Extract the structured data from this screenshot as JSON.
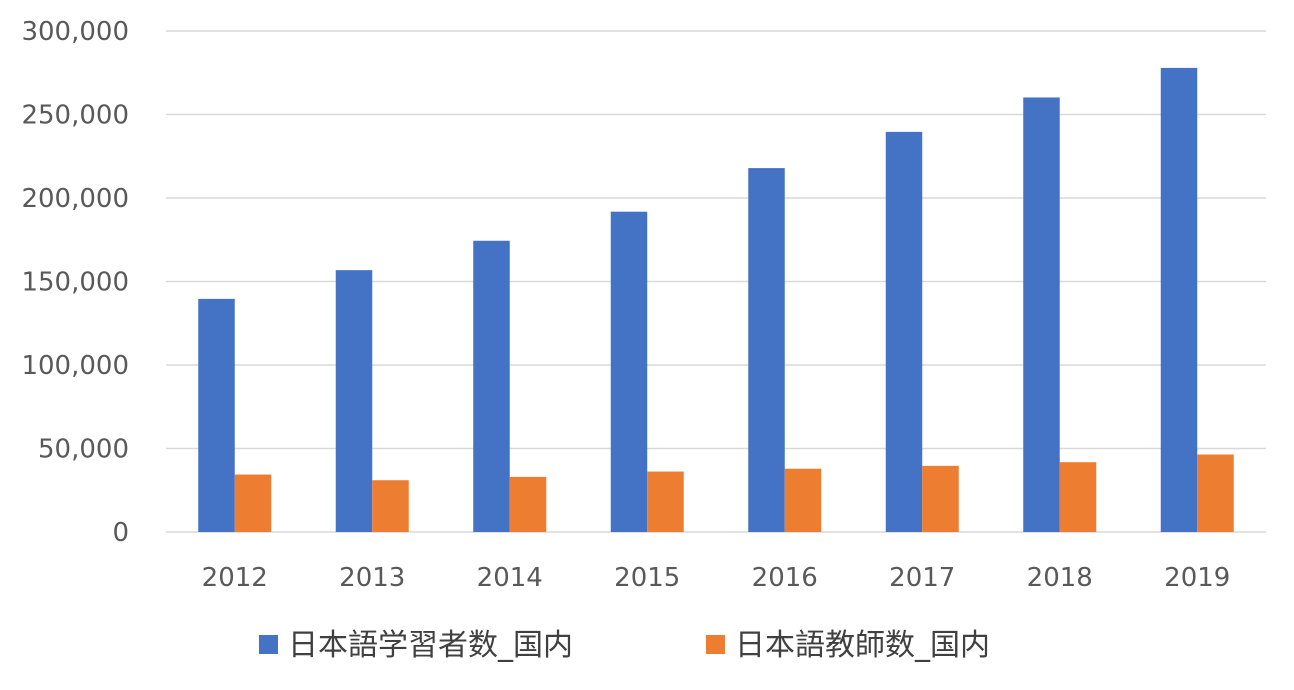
{
  "chart_data": {
    "type": "bar",
    "title": "",
    "xlabel": "",
    "ylabel": "",
    "categories": [
      "2012",
      "2013",
      "2014",
      "2015",
      "2016",
      "2017",
      "2018",
      "2019"
    ],
    "series": [
      {
        "name": "日本語学習者数_国内",
        "color": "#4472C4",
        "values": [
          139600,
          156800,
          174400,
          191800,
          217900,
          239600,
          260200,
          277900
        ]
      },
      {
        "name": "日本語教師数_国内",
        "color": "#ED7D31",
        "values": [
          34400,
          31000,
          33000,
          36200,
          37900,
          39600,
          41800,
          46400
        ]
      }
    ],
    "ylim": [
      0,
      300000
    ],
    "yticks": [
      0,
      50000,
      100000,
      150000,
      200000,
      250000,
      300000
    ],
    "ytick_labels": [
      "0",
      "50,000",
      "100,000",
      "150,000",
      "200,000",
      "250,000",
      "300,000"
    ],
    "grid": true,
    "legend_position": "bottom"
  }
}
